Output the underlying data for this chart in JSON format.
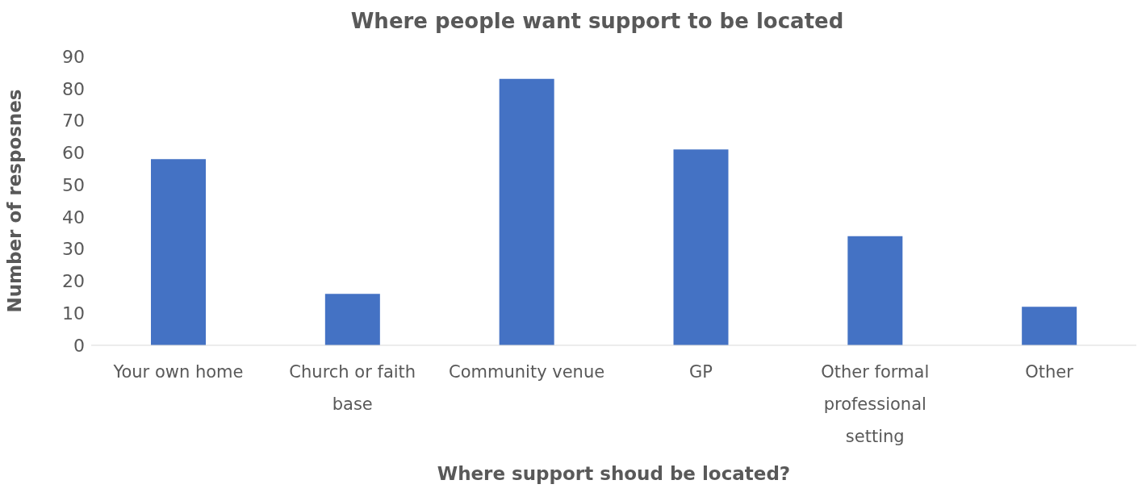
{
  "chart_data": {
    "type": "bar",
    "title": "Where people want support to be located",
    "xlabel": "Where support shoud be located?",
    "ylabel": "Number of resposnes",
    "categories": [
      "Your own home",
      "Church or faith base",
      "Community venue",
      "GP",
      "Other formal professional setting",
      "Other"
    ],
    "values": [
      58,
      16,
      83,
      61,
      34,
      12
    ],
    "color": "#4472c4",
    "ylim": [
      0,
      90
    ],
    "yticks": [
      0,
      10,
      20,
      30,
      40,
      50,
      60,
      70,
      80,
      90
    ],
    "grid": false,
    "legend": false
  }
}
